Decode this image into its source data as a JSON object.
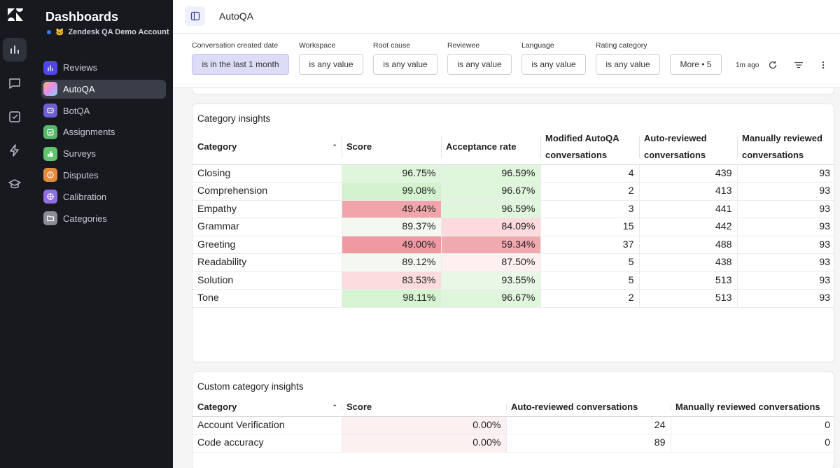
{
  "sidebar": {
    "title": "Dashboards",
    "account": "Zendesk QA Demo Account",
    "items": [
      {
        "label": "Reviews",
        "icon": "bar-chart-icon",
        "color": "#4f46e5"
      },
      {
        "label": "AutoQA",
        "icon": "gradient-square-icon",
        "color": "#c18cf5"
      },
      {
        "label": "BotQA",
        "icon": "robot-icon",
        "color": "#6d5fd6"
      },
      {
        "label": "Assignments",
        "icon": "checkbox-icon",
        "color": "#57b86a"
      },
      {
        "label": "Surveys",
        "icon": "thumbs-up-icon",
        "color": "#62c46e"
      },
      {
        "label": "Disputes",
        "icon": "alert-circle-icon",
        "color": "#e48a3c"
      },
      {
        "label": "Calibration",
        "icon": "crosshair-icon",
        "color": "#8f6ee8"
      },
      {
        "label": "Categories",
        "icon": "folder-icon",
        "color": "#8a8d95"
      }
    ]
  },
  "header": {
    "title": "AutoQA"
  },
  "filters": [
    {
      "label": "Conversation created date",
      "value": "is in the last 1 month",
      "active": true
    },
    {
      "label": "Workspace",
      "value": "is any value"
    },
    {
      "label": "Root cause",
      "value": "is any value"
    },
    {
      "label": "Reviewee",
      "value": "is any value"
    },
    {
      "label": "Language",
      "value": "is any value"
    },
    {
      "label": "Rating category",
      "value": "is any value"
    }
  ],
  "more_button": "More • 5",
  "updated": "1m ago",
  "category_insights": {
    "title": "Category insights",
    "headers": [
      "Category",
      "Score",
      "Acceptance rate",
      "Modified AutoQA conversations",
      "Auto-reviewed conversations",
      "Manually reviewed conversations"
    ],
    "rows": [
      {
        "category": "Closing",
        "score": "96.75%",
        "acceptance": "96.59%",
        "modified": "4",
        "auto": "439",
        "manual": "93",
        "score_color": "#dff6dc",
        "acc_color": "#dff6dc"
      },
      {
        "category": "Comprehension",
        "score": "99.08%",
        "acceptance": "96.67%",
        "modified": "2",
        "auto": "413",
        "manual": "93",
        "score_color": "#d3f3cf",
        "acc_color": "#dff6dc"
      },
      {
        "category": "Empathy",
        "score": "49.44%",
        "acceptance": "96.59%",
        "modified": "3",
        "auto": "441",
        "manual": "93",
        "score_color": "#f0a5ab",
        "acc_color": "#dff6dc"
      },
      {
        "category": "Grammar",
        "score": "89.37%",
        "acceptance": "84.09%",
        "modified": "15",
        "auto": "442",
        "manual": "93",
        "score_color": "#f3f8f0",
        "acc_color": "#fcdadd"
      },
      {
        "category": "Greeting",
        "score": "49.00%",
        "acceptance": "59.34%",
        "modified": "37",
        "auto": "488",
        "manual": "93",
        "score_color": "#ef9aa2",
        "acc_color": "#f1a9b0"
      },
      {
        "category": "Readability",
        "score": "89.12%",
        "acceptance": "87.50%",
        "modified": "5",
        "auto": "438",
        "manual": "93",
        "score_color": "#f4f8f1",
        "acc_color": "#fdf0ef"
      },
      {
        "category": "Solution",
        "score": "83.53%",
        "acceptance": "93.55%",
        "modified": "5",
        "auto": "513",
        "manual": "93",
        "score_color": "#fcdcdf",
        "acc_color": "#e9f8e6"
      },
      {
        "category": "Tone",
        "score": "98.11%",
        "acceptance": "96.67%",
        "modified": "2",
        "auto": "513",
        "manual": "93",
        "score_color": "#d6f4d2",
        "acc_color": "#dff6dc"
      }
    ]
  },
  "custom_category_insights": {
    "title": "Custom category insights",
    "headers": [
      "Category",
      "Score",
      "Auto-reviewed conversations",
      "Manually reviewed conversations"
    ],
    "rows": [
      {
        "category": "Account Verification",
        "score": "0.00%",
        "auto": "24",
        "manual": "0",
        "score_color": "#fdf0f0"
      },
      {
        "category": "Code accuracy",
        "score": "0.00%",
        "auto": "89",
        "manual": "0",
        "score_color": "#fdf0f0"
      }
    ]
  },
  "colors": {
    "sidebar_bg": "#17191f",
    "active_item_bg": "#3a3e48",
    "active_filter_bg": "#dcdcf7"
  }
}
